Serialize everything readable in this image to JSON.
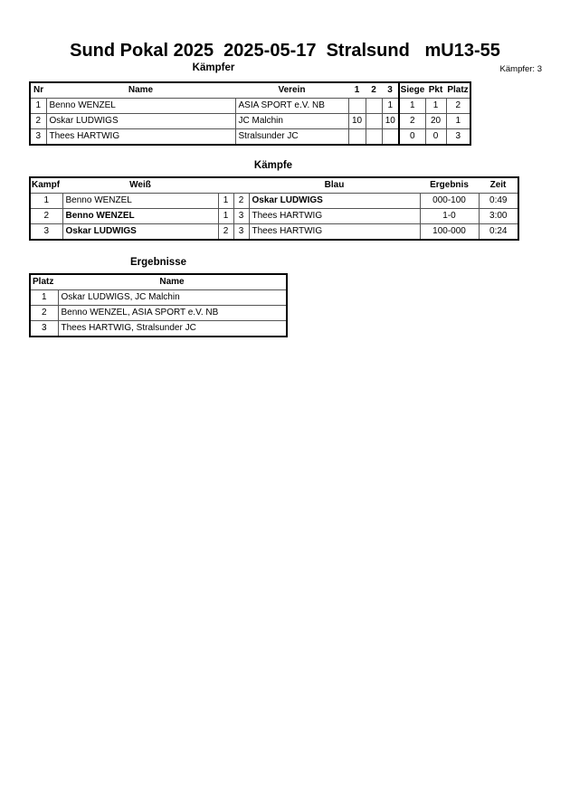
{
  "header": {
    "title": "Sund Pokal 2025  2025-05-17  Stralsund   mU13-55"
  },
  "fighters": {
    "section_title": "Kämpfer",
    "count_label": "Kämpfer: 3",
    "columns": [
      "Nr",
      "Name",
      "Verein",
      "1",
      "2",
      "3",
      "Siege",
      "Pkt",
      "Platz"
    ],
    "rows": [
      {
        "nr": "1",
        "name": "Benno WENZEL",
        "club": "ASIA SPORT e.V. NB",
        "r1": "",
        "r2": "",
        "r3": "1",
        "wins": "1",
        "points": "1",
        "place": "2"
      },
      {
        "nr": "2",
        "name": "Oskar LUDWIGS",
        "club": "JC Malchin",
        "r1": "10",
        "r2": "",
        "r3": "10",
        "wins": "2",
        "points": "20",
        "place": "1"
      },
      {
        "nr": "3",
        "name": "Thees HARTWIG",
        "club": "Stralsunder JC",
        "r1": "",
        "r2": "",
        "r3": "",
        "wins": "0",
        "points": "0",
        "place": "3"
      }
    ]
  },
  "fights": {
    "section_title": "Kämpfe",
    "columns": [
      "Kampf",
      "Weiß",
      "Blau",
      "Ergebnis",
      "Zeit"
    ],
    "rows": [
      {
        "fight": "1",
        "white": "Benno WENZEL",
        "white_bold": false,
        "white_nr": "1",
        "blue_nr": "2",
        "blue": "Oskar LUDWIGS",
        "blue_bold": true,
        "result": "000-100",
        "time": "0:49"
      },
      {
        "fight": "2",
        "white": "Benno WENZEL",
        "white_bold": true,
        "white_nr": "1",
        "blue_nr": "3",
        "blue": "Thees HARTWIG",
        "blue_bold": false,
        "result": "1-0",
        "time": "3:00"
      },
      {
        "fight": "3",
        "white": "Oskar LUDWIGS",
        "white_bold": true,
        "white_nr": "2",
        "blue_nr": "3",
        "blue": "Thees HARTWIG",
        "blue_bold": false,
        "result": "100-000",
        "time": "0:24"
      }
    ]
  },
  "results": {
    "section_title": "Ergebnisse",
    "columns": [
      "Platz",
      "Name"
    ],
    "rows": [
      {
        "place": "1",
        "name": "Oskar LUDWIGS, JC Malchin"
      },
      {
        "place": "2",
        "name": "Benno WENZEL, ASIA SPORT e.V. NB"
      },
      {
        "place": "3",
        "name": "Thees HARTWIG, Stralsunder JC"
      }
    ]
  }
}
